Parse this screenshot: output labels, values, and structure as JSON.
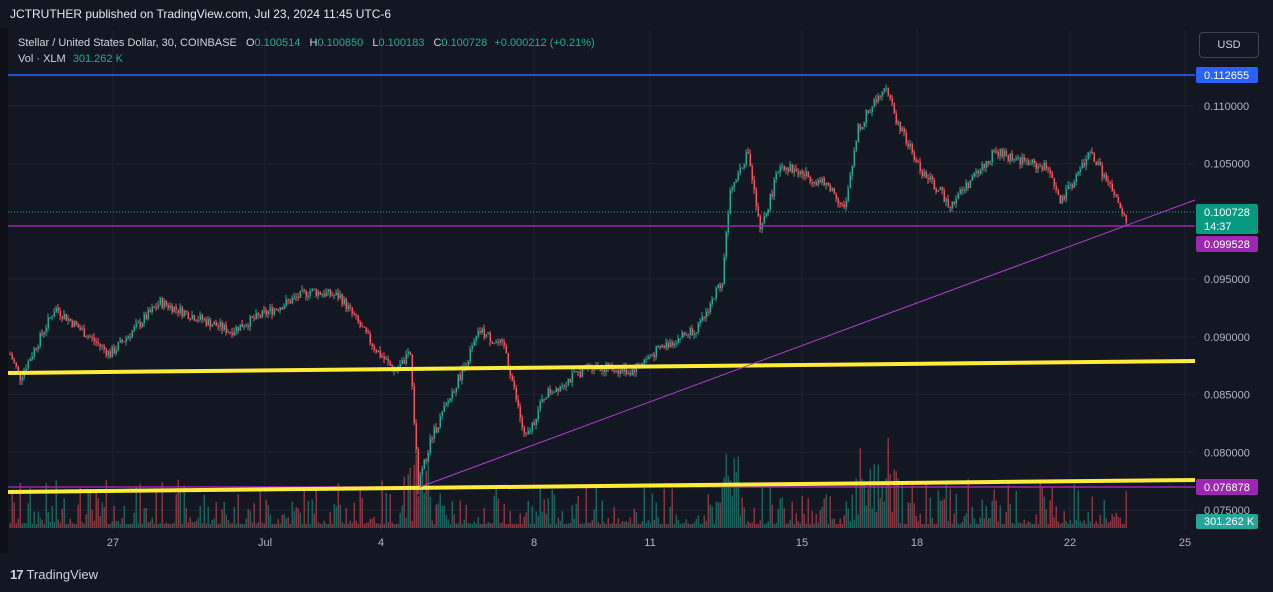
{
  "header": {
    "published_by": "JCTRUTHER published on TradingView.com, Jul 23, 2024 11:45 UTC-6"
  },
  "legend": {
    "symbol": "Stellar / United States Dollar, 30, COINBASE",
    "o_label": "O",
    "o": "0.100514",
    "h_label": "H",
    "h": "0.100850",
    "l_label": "L",
    "l": "0.100183",
    "c_label": "C",
    "c": "0.100728",
    "change": "+0.000212 (+0.21%)",
    "vol_label": "Vol · XLM",
    "vol_value": "301.262 K"
  },
  "currency_button": "USD",
  "price_axis": {
    "ticks": [
      "0.110000",
      "0.105000",
      "0.095000",
      "0.090000",
      "0.085000",
      "0.080000",
      "0.075000"
    ],
    "badges": {
      "top_line": "0.112655",
      "last_price": "0.100728",
      "countdown": "14:37",
      "support": "0.099528",
      "low_line": "0.076878",
      "volume": "301.262 K"
    }
  },
  "time_axis": {
    "labels": [
      "27",
      "Jul",
      "4",
      "8",
      "11",
      "15",
      "18",
      "22",
      "25"
    ]
  },
  "footer": {
    "brand": "TradingView",
    "brand_mark": "17"
  },
  "colors": {
    "background": "#131722",
    "up": "#22ab94",
    "down": "#f7525f",
    "horizontal_line_blue": "#2962ff",
    "support_line_purple": "#9c27b0",
    "trend_yellow": "#ffeb3b"
  }
}
